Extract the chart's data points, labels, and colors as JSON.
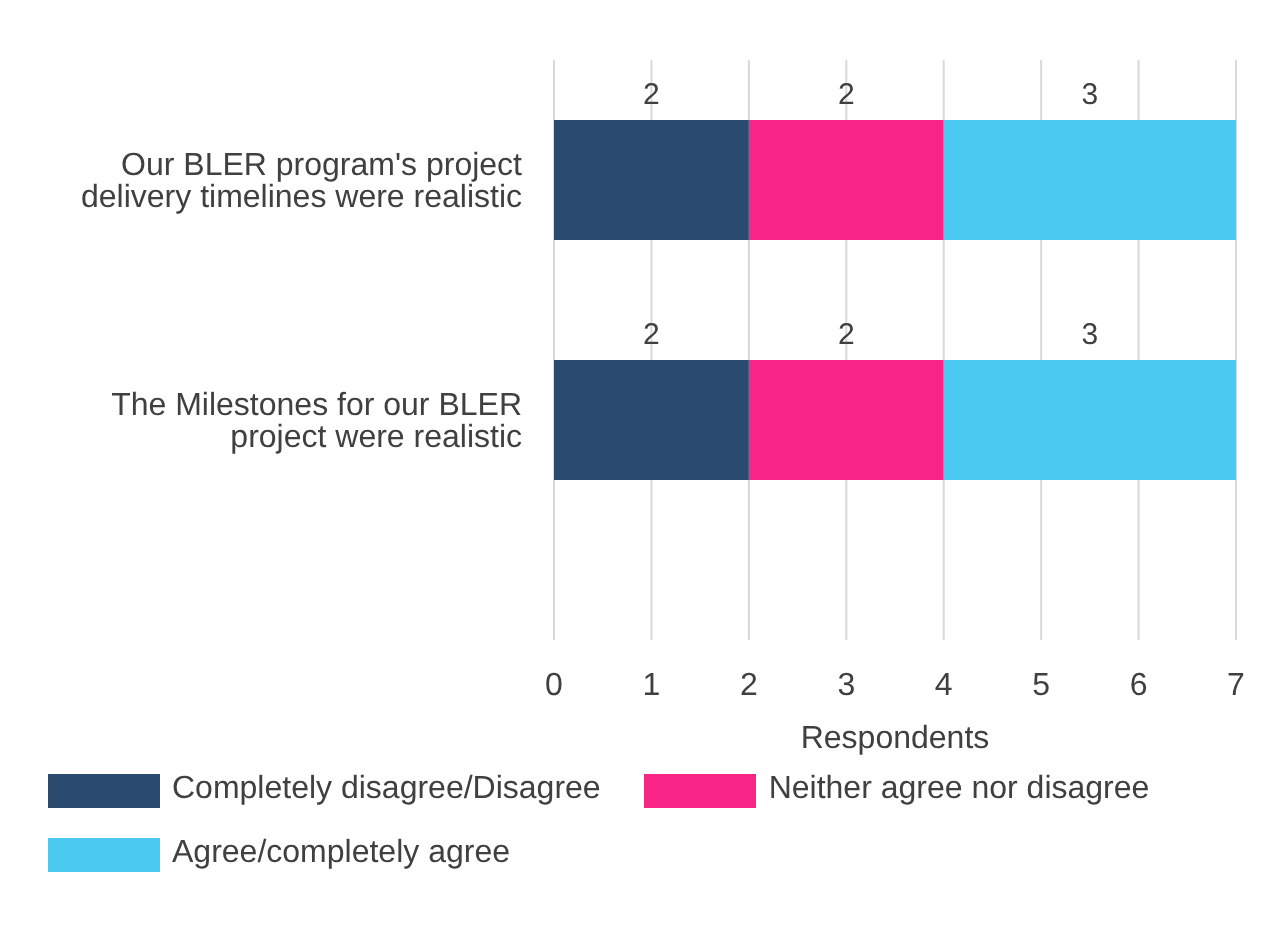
{
  "chart_data": {
    "type": "bar",
    "orientation": "horizontal",
    "stacked": true,
    "categories": [
      "Our BLER program's project delivery timelines were realistic",
      "The Milestones for our BLER project were realistic"
    ],
    "series": [
      {
        "name": "Completely disagree/Disagree",
        "color": "#2b4a6f",
        "values": [
          2,
          2
        ]
      },
      {
        "name": "Neither agree nor disagree",
        "color": "#f72585",
        "values": [
          2,
          2
        ]
      },
      {
        "name": "Agree/completely agree",
        "color": "#4cc9f0",
        "values": [
          3,
          3
        ]
      }
    ],
    "xlabel": "Respondents",
    "xlim": [
      0,
      7
    ],
    "xticks": [
      0,
      1,
      2,
      3,
      4,
      5,
      6,
      7
    ],
    "grid": "x",
    "legend": "bottom",
    "data_labels": true
  }
}
